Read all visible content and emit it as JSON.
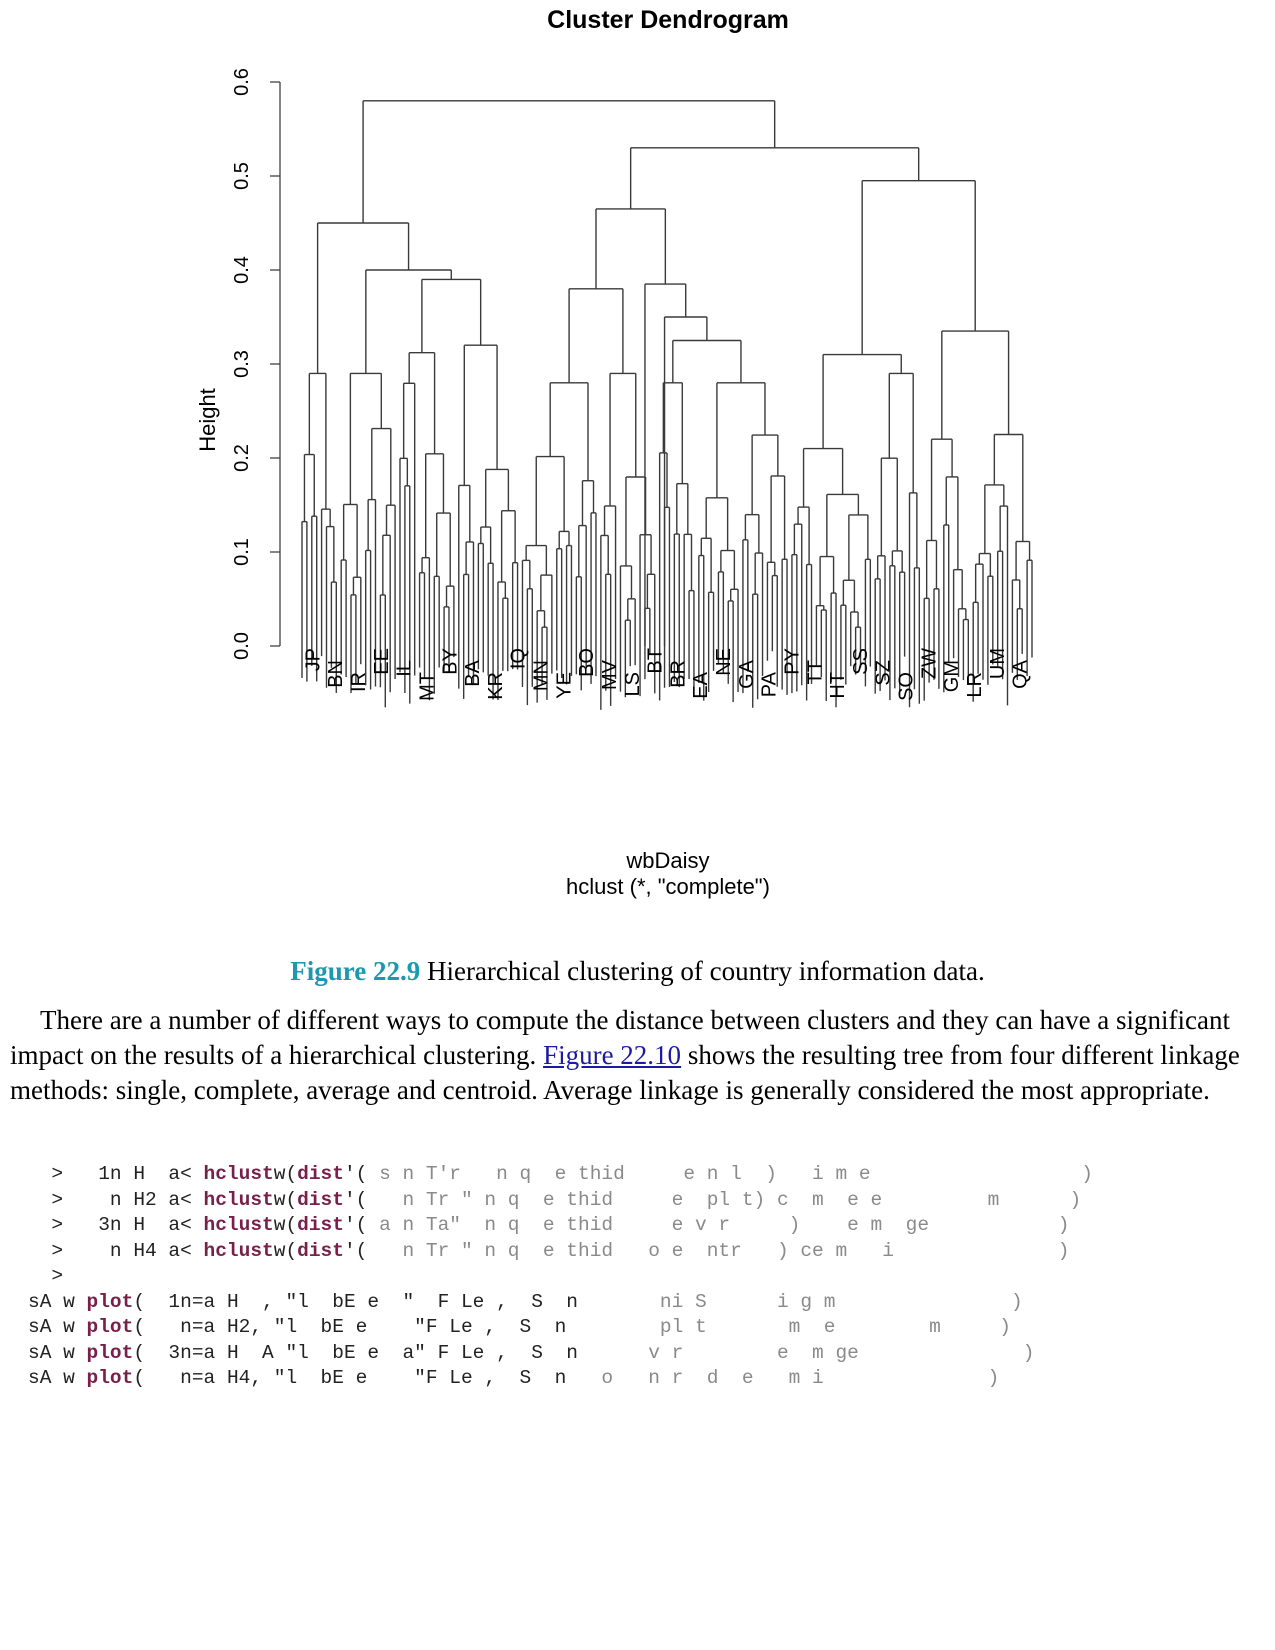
{
  "figure": {
    "title": "Cluster Dendrogram",
    "ylabel": "Height",
    "xlabel": "wbDaisy",
    "sub": "hclust (*, \"complete\")",
    "yticks": [
      "0.0",
      "0.1",
      "0.2",
      "0.3",
      "0.4",
      "0.5",
      "0.6"
    ],
    "visible_leaf_labels": [
      "JP",
      "BN",
      "IR",
      "EE",
      "IL",
      "MT",
      "BY",
      "BA",
      "KR",
      "IQ",
      "MN",
      "YE",
      "BO",
      "MV",
      "LS",
      "BT",
      "BR",
      "EA",
      "NE",
      "GA",
      "PA",
      "PY",
      "TT",
      "HT",
      "SS",
      "SZ",
      "SO",
      "ZW",
      "GM",
      "LR",
      "UM",
      "QA"
    ]
  },
  "chart_data": {
    "type": "dendrogram",
    "title": "Cluster Dendrogram",
    "xlabel": "wbDaisy",
    "ylabel": "Height",
    "subtitle": "hclust (*, \"complete\")",
    "ylim": [
      0,
      0.6
    ],
    "root_height": 0.58,
    "major_merges": [
      {
        "height": 0.58,
        "description": "root"
      },
      {
        "height": 0.53
      },
      {
        "height": 0.495
      },
      {
        "height": 0.465
      },
      {
        "height": 0.45
      },
      {
        "height": 0.4
      },
      {
        "height": 0.39
      },
      {
        "height": 0.385
      },
      {
        "height": 0.38
      },
      {
        "height": 0.35
      },
      {
        "height": 0.335
      },
      {
        "height": 0.32
      },
      {
        "height": 0.31
      }
    ]
  },
  "caption": {
    "label": "Figure 22.9",
    "text": " Hierarchical clustering of country information data."
  },
  "paragraph": {
    "before": "There are a number of different ways to compute the distance between clusters and they can have a significant impact on the results of a hierarchical clustering. ",
    "link": "Figure 22.10",
    "after": " shows the resulting tree from four different linkage methods: single, complete, average and centroid. Average linkage is generally considered the most appropriate."
  },
  "code": {
    "lines": [
      {
        "pre": "  >   1n H  a< ",
        "fn1": "hclust",
        "mid": "w(",
        "fn2": "dist",
        "post": "'(",
        "faint": " s n T'r   n q  e thid     e n l  )   i m e                  )"
      },
      {
        "pre": "  >    n H2 a< ",
        "fn1": "hclust",
        "mid": "w(",
        "fn2": "dist",
        "post": "'(",
        "faint": "   n Tr \" n q  e thid     e  pl t) c  m  e e         m      )"
      },
      {
        "pre": "  >   3n H  a< ",
        "fn1": "hclust",
        "mid": "w(",
        "fn2": "dist",
        "post": "'(",
        "faint": " a n Ta\"  n q  e thid     e v r     )    e m  ge           )"
      },
      {
        "pre": "  >    n H4 a< ",
        "fn1": "hclust",
        "mid": "w(",
        "fn2": "dist",
        "post": "'(",
        "faint": "   n Tr \" n q  e thid   o e  ntr   ) ce m   i              )"
      },
      {
        "pre": "  >",
        "fn1": "",
        "mid": "",
        "fn2": "",
        "post": "",
        "faint": ""
      },
      {
        "pre": "sA w ",
        "fn1": "plot",
        "mid": "(  1n=a H  , \"l  bE e  \"  F Le ,  S  n",
        "fn2": "",
        "post": "",
        "faint": "       ni S      i g m               )"
      },
      {
        "pre": "sA w ",
        "fn1": "plot",
        "mid": "(   n=a H2, \"l  bE e    \"F Le ,  S  n",
        "fn2": "",
        "post": "",
        "faint": "        pl t       m  e        m     )"
      },
      {
        "pre": "sA w ",
        "fn1": "plot",
        "mid": "(  3n=a H  A \"l  bE e  a\" F Le ,  S  n",
        "fn2": "",
        "post": "",
        "faint": "      v r        e  m ge              )"
      },
      {
        "pre": "sA w ",
        "fn1": "plot",
        "mid": "(   n=a H4, \"l  bE e    \"F Le ,  S  n",
        "fn2": "",
        "post": "",
        "faint": "   o   n r  d  e   m i              )"
      }
    ]
  }
}
